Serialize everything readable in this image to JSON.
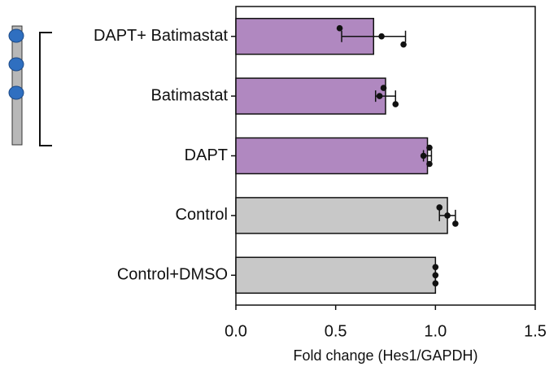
{
  "chart_data": {
    "type": "bar",
    "orientation": "horizontal",
    "categories": [
      "DAPT+ Batimastat",
      "Batimastat",
      "DAPT",
      "Control",
      "Control+DMSO"
    ],
    "values": [
      0.69,
      0.75,
      0.96,
      1.06,
      1.0
    ],
    "errors": [
      0.16,
      0.05,
      0.02,
      0.04,
      0
    ],
    "points": [
      [
        0.52,
        0.73,
        0.84
      ],
      [
        0.74,
        0.72,
        0.8
      ],
      [
        0.97,
        0.94,
        0.97
      ],
      [
        1.02,
        1.06,
        1.1
      ],
      [
        1.0,
        1.0,
        1.0
      ]
    ],
    "colors": [
      "#b088c0",
      "#b088c0",
      "#b088c0",
      "#c8c8c8",
      "#c8c8c8"
    ],
    "xlabel": "Fold change (Hes1/GAPDH)",
    "xlim": [
      0,
      1.5
    ],
    "xticks": [
      {
        "value": 0,
        "label": "0.0"
      },
      0.5,
      {
        "value": 1,
        "label": "1.0"
      },
      1.5
    ]
  }
}
